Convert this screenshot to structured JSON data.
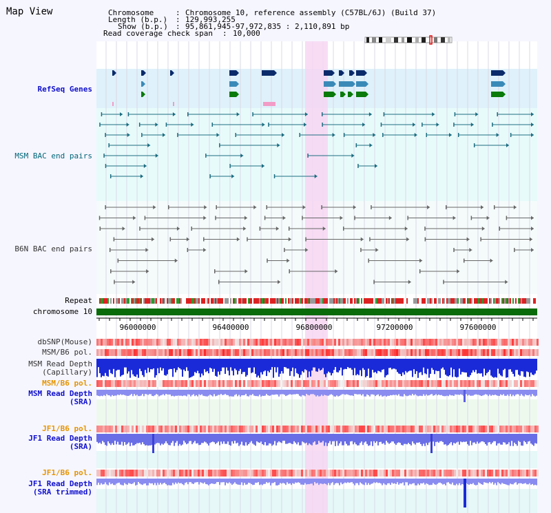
{
  "header": {
    "title": "Map View",
    "chromosome_label": "Chromosome",
    "chromosome_value": "Chromosome 10, reference assembly (C57BL/6J) (Build 37)",
    "length_label": "Length (b.p.)",
    "length_value": "129,993,255",
    "show_label": "Show (b.p.)",
    "show_value": "95,861,945-97,972,835 : 2,110,891 bp",
    "span_label": "Read coverage check span",
    "span_value": "10,000"
  },
  "tracks": {
    "refseq": "RefSeq Genes",
    "msm_bac": "MSM BAC end pairs",
    "b6n_bac": "B6N BAC end pairs",
    "repeat": "Repeat",
    "chromosome": "chromosome 10",
    "dbsnp": "dbSNP(Mouse)",
    "msm_b6_pol_1": "MSM/B6 pol.",
    "msm_depth_cap_1": "MSM Read Depth",
    "msm_depth_cap_2": "(Capillary)",
    "msm_b6_pol_2": "MSM/B6 pol.",
    "msm_depth_sra_1": "MSM Read Depth",
    "msm_depth_sra_2": "(SRA)",
    "jf1_b6_pol_1": "JF1/B6 pol.",
    "jf1_depth_sra_1": "JF1 Read Depth",
    "jf1_depth_sra_2": "(SRA)",
    "jf1_b6_pol_2": "JF1/B6 pol.",
    "jf1_depth_trim_1": "JF1 Read Depth",
    "jf1_depth_trim_2": "(SRA trimmed)"
  },
  "axis": {
    "ticks": [
      "96000000",
      "96400000",
      "96800000",
      "97200000",
      "97600000"
    ]
  },
  "colors": {
    "refseq_bg": "#dff1fb",
    "bac_bg": "#e8fbfb",
    "highlight": "#f7d6f2",
    "msm_bac": "#1b6c80",
    "b6n_bac": "#666666",
    "chromosome_bar": "#0a6b0a",
    "depth_blue": "#1a2ad8",
    "depth_light": "#8a8cf0",
    "pol_red": "#ee4444"
  }
}
